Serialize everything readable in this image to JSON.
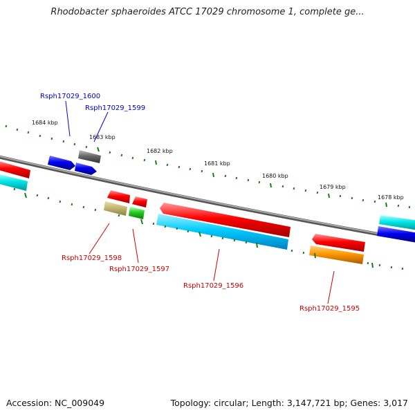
{
  "title": "Rhodobacter sphaeroides ATCC 17029 chromosome 1, complete ge...",
  "scale_labels": [
    "1684 kbp",
    "1683 kbp",
    "1682 kbp",
    "1681 kbp",
    "1680 kbp",
    "1679 kbp",
    "1678 kbp"
  ],
  "gene_labels": [
    "Rsph17029_1600",
    "Rsph17029_1599",
    "Rsph17029_1598",
    "Rsph17029_1597",
    "Rsph17029_1596",
    "Rsph17029_1595"
  ],
  "footer": {
    "accession": "Accession: NC_009049",
    "summary": "Topology: circular; Length: 3,147,721 bp; Genes: 3,017"
  },
  "colors": {
    "forward_label": "#0000cc",
    "reverse_label": "#cc0000",
    "backbone": "#808080",
    "scale_ticks": "#1a7a1a"
  }
}
